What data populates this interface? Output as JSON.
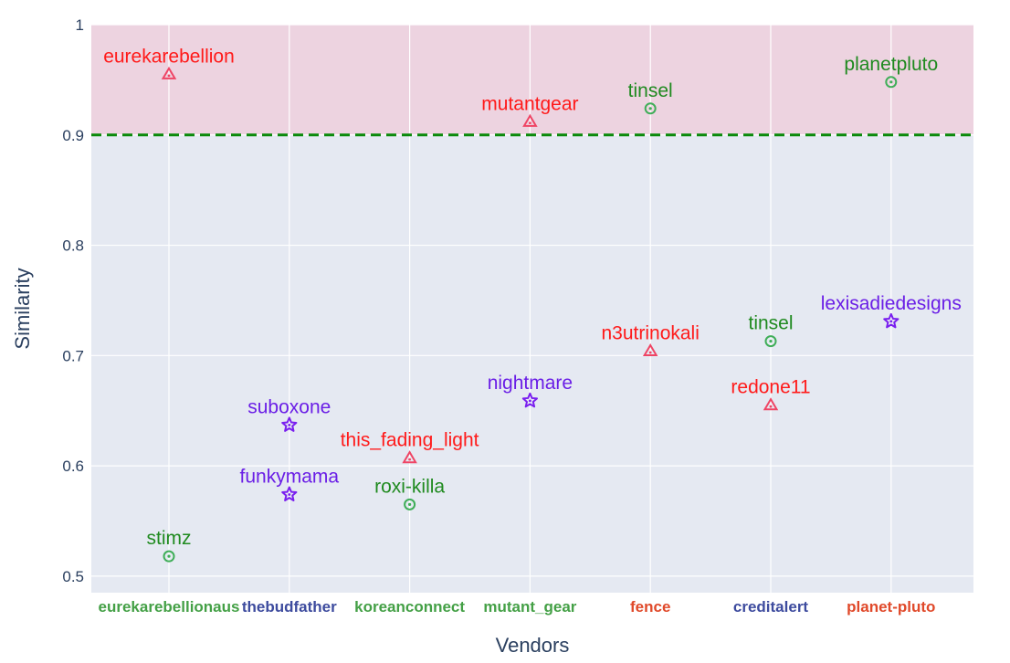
{
  "chart_data": {
    "type": "scatter",
    "xlabel": "Vendors",
    "ylabel": "Similarity",
    "ylim": [
      0.485,
      1.0
    ],
    "yticks": [
      0.5,
      0.6,
      0.7,
      0.8,
      0.9,
      1
    ],
    "ytick_labels": [
      "0.5",
      "0.6",
      "0.7",
      "0.8",
      "0.9",
      "1"
    ],
    "grid": true,
    "threshold": {
      "value": 0.9,
      "color": "#0a8a0a",
      "style": "dashed"
    },
    "highlight_band": {
      "from": 0.9,
      "to": 1.0,
      "color": "#edd3e0"
    },
    "plot_background": "#e5e9f2",
    "categories": [
      {
        "label": "eurekarebellionaus",
        "color": "#44a046"
      },
      {
        "label": "thebudfather",
        "color": "#3d4b9e"
      },
      {
        "label": "koreanconnect",
        "color": "#44a046"
      },
      {
        "label": "mutant_gear",
        "color": "#44a046"
      },
      {
        "label": "fence",
        "color": "#e0492a"
      },
      {
        "label": "creditalert",
        "color": "#3d4b9e"
      },
      {
        "label": "planet-pluto",
        "color": "#e0492a"
      }
    ],
    "marker_styles": {
      "triangle": {
        "color": "#ef4565",
        "label_color": "#ff1a1a"
      },
      "circle": {
        "color": "#3fae58",
        "label_color": "#1f8a1f"
      },
      "star": {
        "color": "#7a1fef",
        "label_color": "#6a1ee6"
      }
    },
    "points": [
      {
        "category": "eurekarebellionaus",
        "label": "eurekarebellion",
        "y": 0.955,
        "marker": "triangle"
      },
      {
        "category": "eurekarebellionaus",
        "label": "stimz",
        "y": 0.518,
        "marker": "circle"
      },
      {
        "category": "thebudfather",
        "label": "suboxone",
        "y": 0.637,
        "marker": "star"
      },
      {
        "category": "thebudfather",
        "label": "funkymama",
        "y": 0.574,
        "marker": "star"
      },
      {
        "category": "koreanconnect",
        "label": "this_fading_light",
        "y": 0.607,
        "marker": "triangle"
      },
      {
        "category": "koreanconnect",
        "label": "roxi-killa",
        "y": 0.565,
        "marker": "circle"
      },
      {
        "category": "mutant_gear",
        "label": "mutantgear",
        "y": 0.912,
        "marker": "triangle"
      },
      {
        "category": "mutant_gear",
        "label": "nightmare",
        "y": 0.659,
        "marker": "star"
      },
      {
        "category": "fence",
        "label": "tinsel",
        "y": 0.924,
        "marker": "circle"
      },
      {
        "category": "fence",
        "label": "n3utrinokali",
        "y": 0.704,
        "marker": "triangle"
      },
      {
        "category": "creditalert",
        "label": "tinsel",
        "y": 0.713,
        "marker": "circle"
      },
      {
        "category": "creditalert",
        "label": "redone11",
        "y": 0.655,
        "marker": "triangle"
      },
      {
        "category": "planet-pluto",
        "label": "planetpluto",
        "y": 0.948,
        "marker": "circle"
      },
      {
        "category": "planet-pluto",
        "label": "lexisadiedesigns",
        "y": 0.731,
        "marker": "star"
      }
    ]
  }
}
